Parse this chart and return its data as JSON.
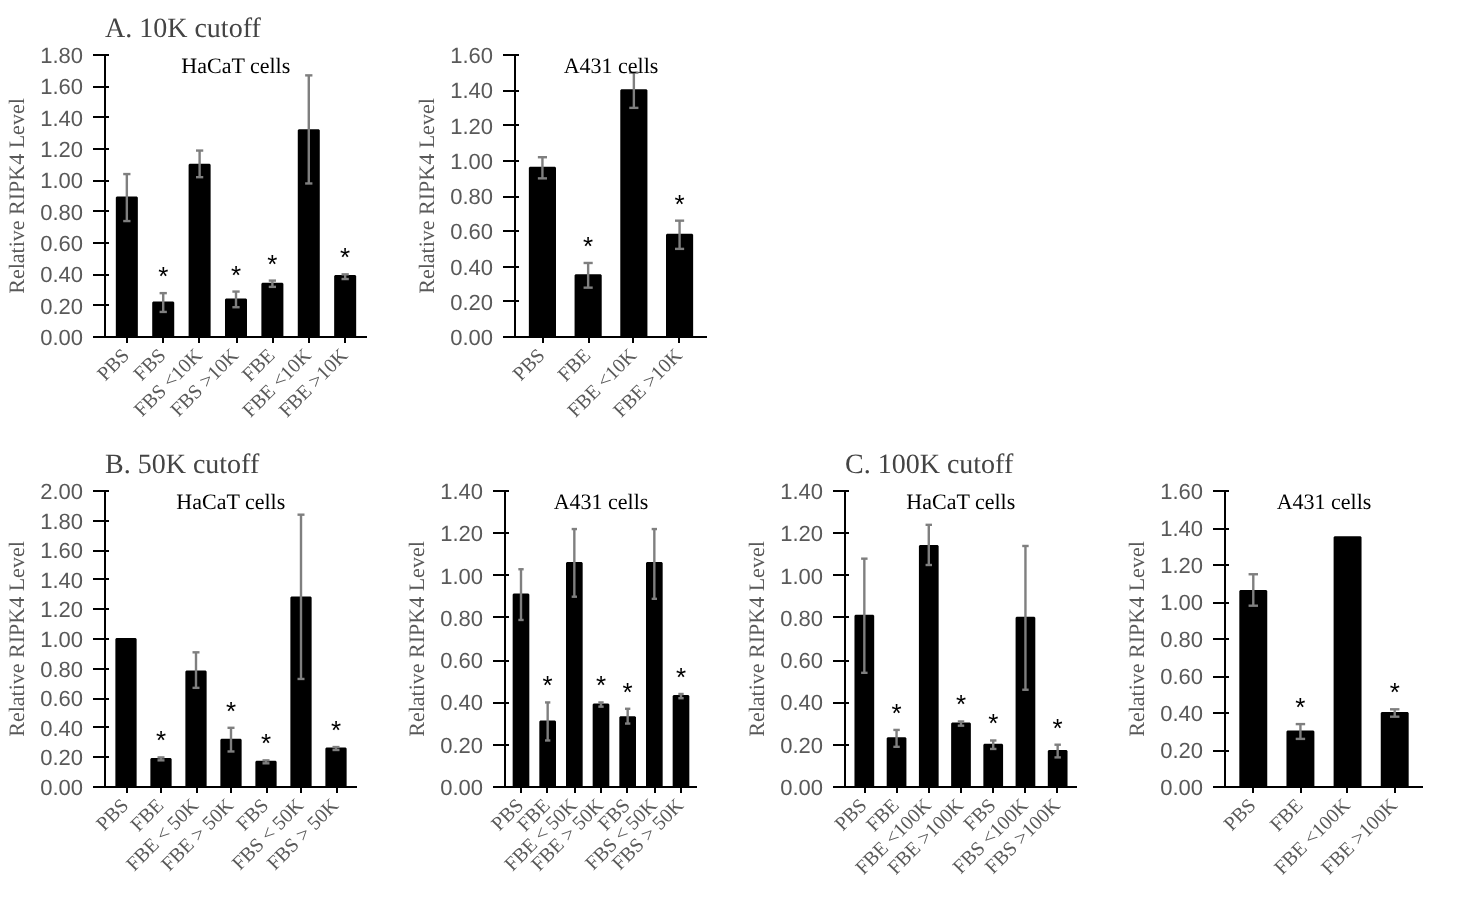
{
  "chart_data": [
    {
      "type": "bar",
      "title": "A. 10K cutoff",
      "subtitle": "HaCaT cells",
      "ylabel": "Relative RIPK4 Level",
      "categories": [
        "PBS",
        "FBS",
        "FBS <10K",
        "FBS >10K",
        "FBE",
        "FBE <10K",
        "FBE >10K"
      ],
      "values": [
        0.89,
        0.22,
        1.1,
        0.24,
        0.34,
        1.32,
        0.39
      ],
      "errors": [
        [
          0.74,
          1.04
        ],
        [
          0.16,
          0.28
        ],
        [
          1.02,
          1.19
        ],
        [
          0.19,
          0.29
        ],
        [
          0.32,
          0.36
        ],
        [
          0.98,
          1.67
        ],
        [
          0.37,
          0.4
        ]
      ],
      "color": "#000000",
      "ylim": [
        0,
        1.8
      ],
      "yticks": [
        {
          "value": 0,
          "label": "0.00"
        },
        {
          "value": 0.2,
          "label": "0.20"
        },
        {
          "value": 0.4,
          "label": "0.40"
        },
        {
          "value": 0.6,
          "label": "0.60"
        },
        {
          "value": 0.8,
          "label": "0.80"
        },
        {
          "value": 1.0,
          "label": "1.00"
        },
        {
          "value": 1.2,
          "label": "1.20"
        },
        {
          "value": 1.4,
          "label": "1.40"
        },
        {
          "value": 1.6,
          "label": "1.60"
        },
        {
          "value": 1.8,
          "label": "1.80"
        }
      ],
      "annotations": [
        {
          "text": "*",
          "x": "FBS",
          "y": 0.28
        },
        {
          "text": "*",
          "x": "FBS >10K",
          "y": 0.29
        },
        {
          "text": "*",
          "x": "FBE",
          "y": 0.36
        },
        {
          "text": "*",
          "x": "FBE >10K",
          "y": 0.4
        }
      ]
    },
    {
      "type": "bar",
      "subtitle": "A431 cells",
      "ylabel": "Relative RIPK4 Level",
      "categories": [
        "PBS",
        "FBE",
        "FBE <10K",
        "FBE >10K"
      ],
      "values": [
        0.96,
        0.35,
        1.4,
        0.58
      ],
      "errors": [
        [
          0.9,
          1.02
        ],
        [
          0.28,
          0.42
        ],
        [
          1.3,
          1.5
        ],
        [
          0.5,
          0.66
        ]
      ],
      "color": "#000000",
      "ylim": [
        0,
        1.6
      ],
      "yticks": [
        {
          "value": 0,
          "label": "0.00"
        },
        {
          "value": 0.2,
          "label": "0.20"
        },
        {
          "value": 0.4,
          "label": "0.40"
        },
        {
          "value": 0.6,
          "label": "0.60"
        },
        {
          "value": 0.8,
          "label": "0.80"
        },
        {
          "value": 1.0,
          "label": "1.00"
        },
        {
          "value": 1.2,
          "label": "1.20"
        },
        {
          "value": 1.4,
          "label": "1.40"
        },
        {
          "value": 1.6,
          "label": "1.60"
        }
      ],
      "annotations": [
        {
          "text": "*",
          "x": "FBE",
          "y": 0.42
        },
        {
          "text": "*",
          "x": "FBE >10K",
          "y": 0.66
        }
      ]
    },
    {
      "type": "bar",
      "title": "B. 50K cutoff",
      "subtitle": "HaCaT cells",
      "ylabel": "Relative RIPK4 Level",
      "categories": [
        "PBS",
        "FBE",
        "FBE < 50K",
        "FBE > 50K",
        "FBS",
        "FBS < 50K",
        "FBS > 50K"
      ],
      "values": [
        1.0,
        0.19,
        0.78,
        0.32,
        0.17,
        1.28,
        0.26
      ],
      "errors": [
        null,
        [
          0.18,
          0.2
        ],
        [
          0.67,
          0.91
        ],
        [
          0.24,
          0.4
        ],
        [
          0.16,
          0.18
        ],
        [
          0.73,
          1.84
        ],
        [
          0.25,
          0.27
        ]
      ],
      "color": "#000000",
      "ylim": [
        0,
        2.0
      ],
      "yticks": [
        {
          "value": 0,
          "label": "0.00"
        },
        {
          "value": 0.2,
          "label": "0.20"
        },
        {
          "value": 0.4,
          "label": "0.40"
        },
        {
          "value": 0.6,
          "label": "0.60"
        },
        {
          "value": 0.8,
          "label": "0.80"
        },
        {
          "value": 1.0,
          "label": "1.00"
        },
        {
          "value": 1.2,
          "label": "1.20"
        },
        {
          "value": 1.4,
          "label": "1.40"
        },
        {
          "value": 1.6,
          "label": "1.60"
        },
        {
          "value": 1.8,
          "label": "1.80"
        },
        {
          "value": 2.0,
          "label": "2.00"
        }
      ],
      "annotations": [
        {
          "text": "*",
          "x": "FBE",
          "y": 0.2
        },
        {
          "text": "*",
          "x": "FBE > 50K",
          "y": 0.4
        },
        {
          "text": "*",
          "x": "FBS",
          "y": 0.18
        },
        {
          "text": "*",
          "x": "FBS > 50K",
          "y": 0.27
        }
      ]
    },
    {
      "type": "bar",
      "subtitle": "A431 cells",
      "ylabel": "Relative RIPK4 Level",
      "categories": [
        "PBS",
        "FBE",
        "FBE < 50K",
        "FBE > 50K",
        "FBS",
        "FBS < 50K",
        "FBS > 50K"
      ],
      "values": [
        0.91,
        0.31,
        1.06,
        0.39,
        0.33,
        1.06,
        0.43
      ],
      "errors": [
        [
          0.79,
          1.03
        ],
        [
          0.22,
          0.4
        ],
        [
          0.9,
          1.22
        ],
        [
          0.38,
          0.4
        ],
        [
          0.3,
          0.37
        ],
        [
          0.89,
          1.22
        ],
        [
          0.42,
          0.44
        ]
      ],
      "color": "#000000",
      "ylim": [
        0,
        1.4
      ],
      "yticks": [
        {
          "value": 0,
          "label": "0.00"
        },
        {
          "value": 0.2,
          "label": "0.20"
        },
        {
          "value": 0.4,
          "label": "0.40"
        },
        {
          "value": 0.6,
          "label": "0.60"
        },
        {
          "value": 0.8,
          "label": "0.80"
        },
        {
          "value": 1.0,
          "label": "1.00"
        },
        {
          "value": 1.2,
          "label": "1.20"
        },
        {
          "value": 1.4,
          "label": "1.40"
        }
      ],
      "annotations": [
        {
          "text": "*",
          "x": "FBE",
          "y": 0.4
        },
        {
          "text": "*",
          "x": "FBE > 50K",
          "y": 0.4
        },
        {
          "text": "*",
          "x": "FBS",
          "y": 0.37
        },
        {
          "text": "*",
          "x": "FBS > 50K",
          "y": 0.44
        }
      ]
    },
    {
      "type": "bar",
      "title": "C. 100K cutoff",
      "subtitle": "HaCaT cells",
      "ylabel": "Relative RIPK4 Level",
      "categories": [
        "PBS",
        "FBE",
        "FBE <100K",
        "FBE >100K",
        "FBS",
        "FBS <100K",
        "FBS >100K"
      ],
      "values": [
        0.81,
        0.23,
        1.14,
        0.3,
        0.2,
        0.8,
        0.17
      ],
      "errors": [
        [
          0.54,
          1.08
        ],
        [
          0.19,
          0.27
        ],
        [
          1.05,
          1.24
        ],
        [
          0.29,
          0.31
        ],
        [
          0.18,
          0.22
        ],
        [
          0.46,
          1.14
        ],
        [
          0.14,
          0.2
        ]
      ],
      "color": "#000000",
      "ylim": [
        0,
        1.4
      ],
      "yticks": [
        {
          "value": 0,
          "label": "0.00"
        },
        {
          "value": 0.2,
          "label": "0.20"
        },
        {
          "value": 0.4,
          "label": "0.40"
        },
        {
          "value": 0.6,
          "label": "0.60"
        },
        {
          "value": 0.8,
          "label": "0.80"
        },
        {
          "value": 1.0,
          "label": "1.00"
        },
        {
          "value": 1.2,
          "label": "1.20"
        },
        {
          "value": 1.4,
          "label": "1.40"
        }
      ],
      "annotations": [
        {
          "text": "*",
          "x": "FBE",
          "y": 0.27
        },
        {
          "text": "*",
          "x": "FBE >100K",
          "y": 0.31
        },
        {
          "text": "*",
          "x": "FBS",
          "y": 0.22
        },
        {
          "text": "*",
          "x": "FBS >100K",
          "y": 0.2
        }
      ]
    },
    {
      "type": "bar",
      "subtitle": "A431 cells",
      "ylabel": "Relative RIPK4 Level",
      "categories": [
        "PBS",
        "FBE",
        "FBE <100K",
        "FBE >100K"
      ],
      "values": [
        1.06,
        0.3,
        1.35,
        0.4
      ],
      "errors": [
        [
          0.98,
          1.15
        ],
        [
          0.26,
          0.34
        ],
        null,
        [
          0.38,
          0.42
        ]
      ],
      "color": "#000000",
      "ylim": [
        0,
        1.6
      ],
      "yticks": [
        {
          "value": 0,
          "label": "0.00"
        },
        {
          "value": 0.2,
          "label": "0.20"
        },
        {
          "value": 0.4,
          "label": "0.40"
        },
        {
          "value": 0.6,
          "label": "0.60"
        },
        {
          "value": 0.8,
          "label": "0.80"
        },
        {
          "value": 1.0,
          "label": "1.00"
        },
        {
          "value": 1.2,
          "label": "1.20"
        },
        {
          "value": 1.4,
          "label": "1.40"
        },
        {
          "value": 1.6,
          "label": "1.60"
        }
      ],
      "annotations": [
        {
          "text": "*",
          "x": "FBE",
          "y": 0.34
        },
        {
          "text": "*",
          "x": "FBE >100K",
          "y": 0.42
        }
      ]
    }
  ]
}
